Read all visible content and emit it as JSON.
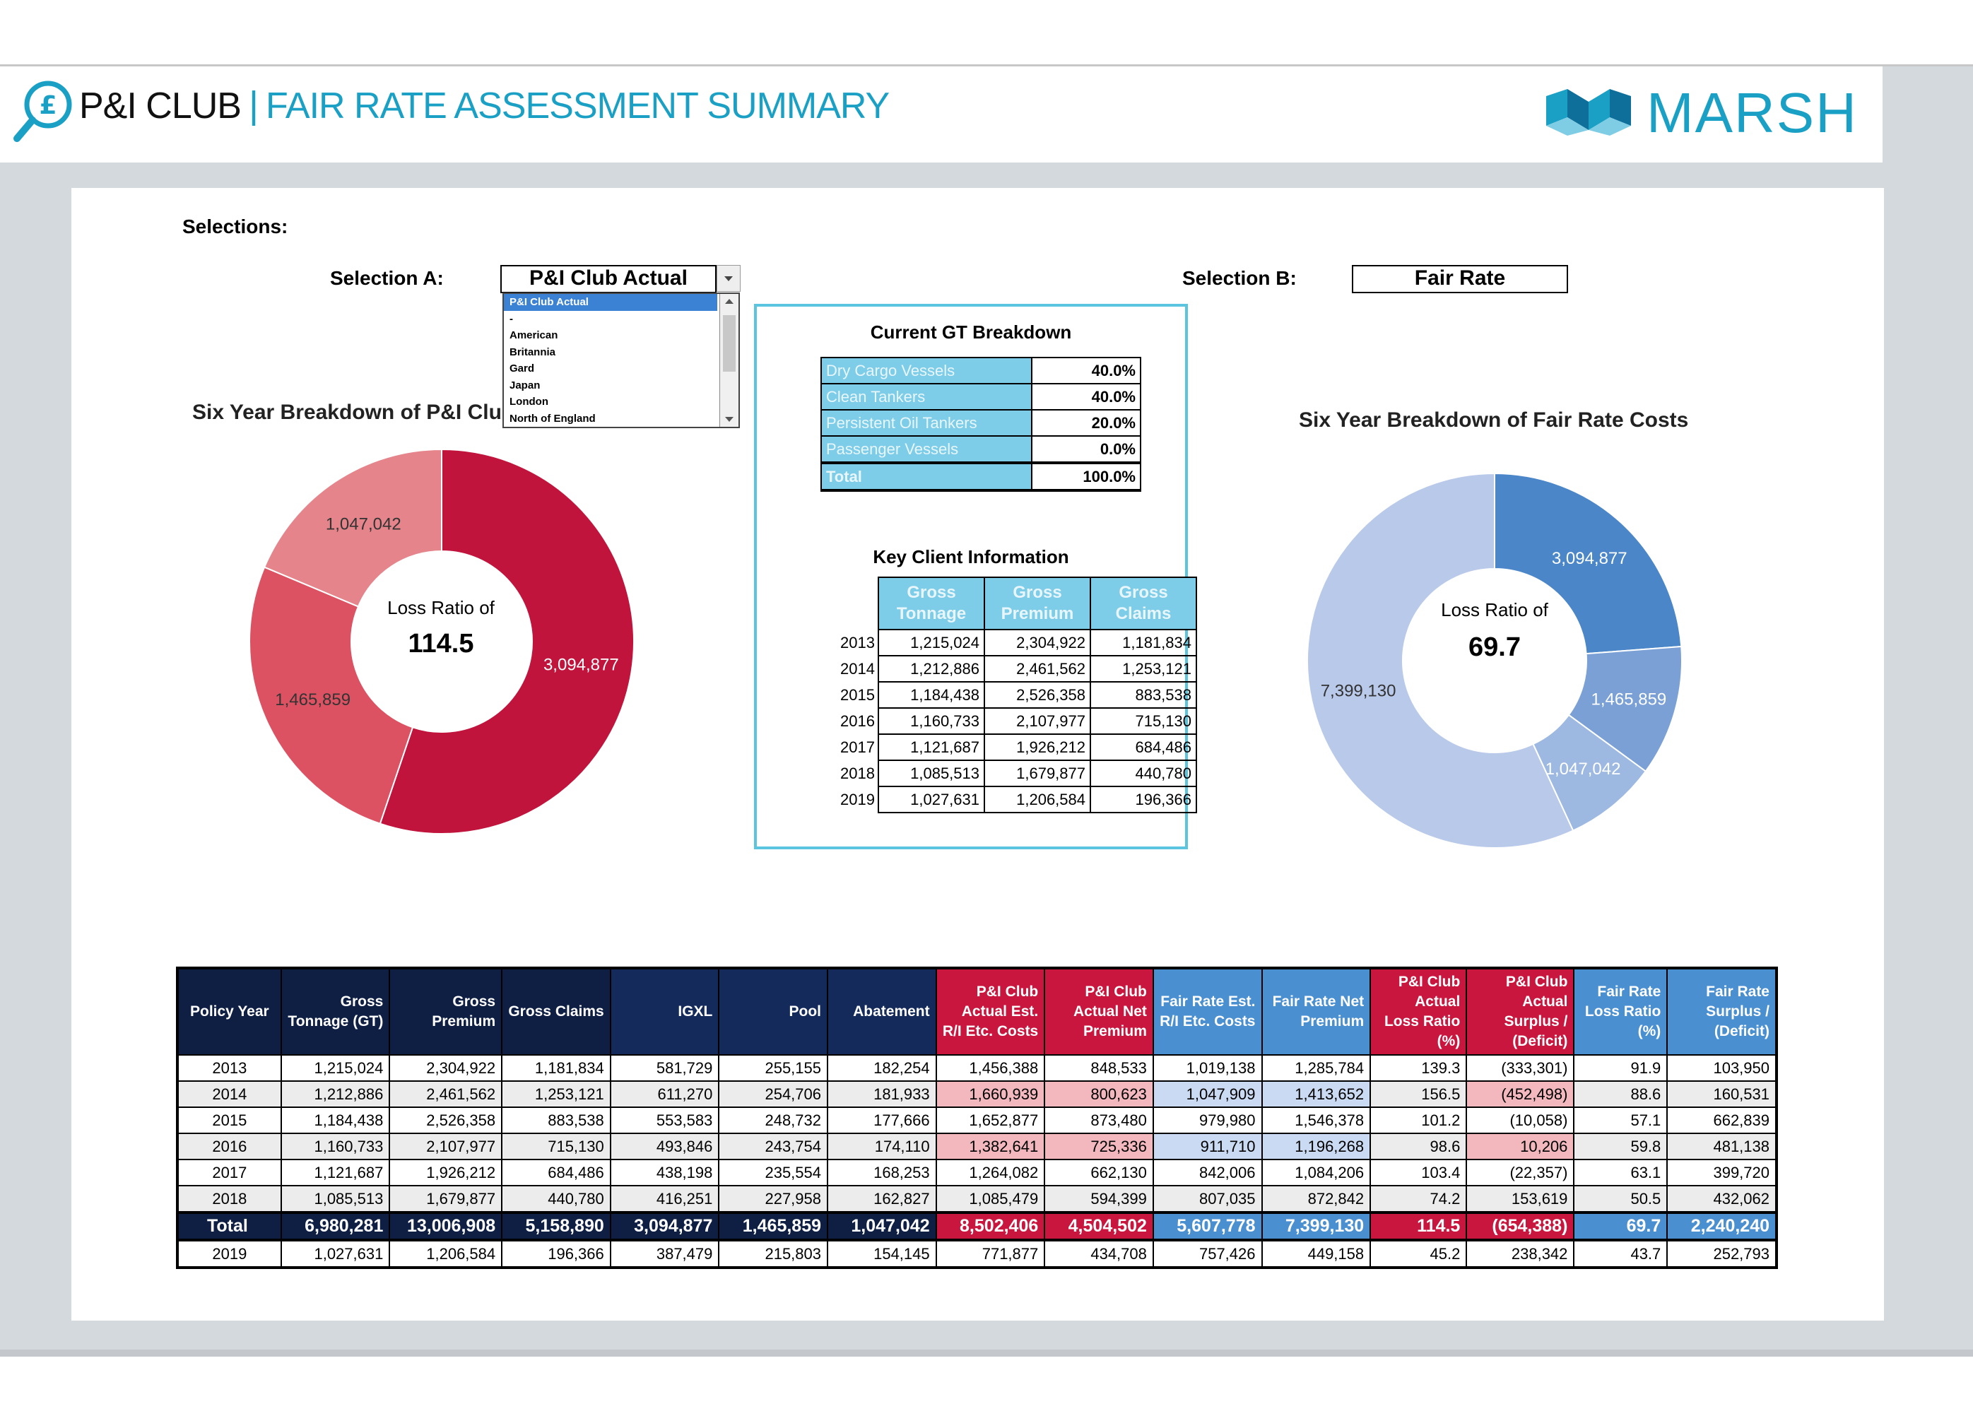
{
  "header": {
    "club": "P&I CLUB",
    "separator": "|",
    "title": "FAIR RATE ASSESSMENT SUMMARY",
    "brand": "MARSH",
    "colors": {
      "accent": "#1aa0c4",
      "red": "#c8163e",
      "blue": "#4a8fd0",
      "navy": "#0f1f44"
    }
  },
  "selections": {
    "heading": "Selections:",
    "a_label": "Selection A:",
    "a_value": "P&I Club Actual",
    "b_label": "Selection B:",
    "b_value": "Fair Rate",
    "dropdown_items": [
      "P&I Club Actual",
      "-",
      "American",
      "Britannia",
      "Gard",
      "Japan",
      "London",
      "North of England"
    ]
  },
  "left_pie": {
    "title": "Six Year Breakdown of P&I Clu",
    "center_label": "Loss Ratio of",
    "center_value": "114.5",
    "colors": [
      "#c0143c",
      "#dc5262",
      "#e5848b"
    ],
    "chart_data": {
      "type": "pie",
      "values": [
        3094877,
        1465859,
        1047042
      ],
      "labels": [
        "3,094,877",
        "1,465,859",
        "1,047,042"
      ]
    }
  },
  "right_pie": {
    "title": "Six Year Breakdown of Fair Rate Costs",
    "center_label": "Loss Ratio of",
    "center_value": "69.7",
    "colors": [
      "#4a86c8",
      "#7aa0d6",
      "#9db9e2",
      "#b9c9ea"
    ],
    "chart_data": {
      "type": "pie",
      "values": [
        3094877,
        1465859,
        1047042,
        7399130
      ],
      "labels": [
        "3,094,877",
        "1,465,859",
        "1,047,042",
        "7,399,130"
      ]
    }
  },
  "gt_breakdown": {
    "title": "Current GT Breakdown",
    "rows": [
      {
        "name": "Dry Cargo Vessels",
        "pct": "40.0%"
      },
      {
        "name": "Clean Tankers",
        "pct": "40.0%"
      },
      {
        "name": "Persistent Oil Tankers",
        "pct": "20.0%"
      },
      {
        "name": "Passenger Vessels",
        "pct": "0.0%"
      }
    ],
    "total_label": "Total",
    "total_pct": "100.0%"
  },
  "key_client": {
    "title": "Key Client Information",
    "headers": [
      "Gross Tonnage",
      "Gross Premium",
      "Gross Claims"
    ],
    "rows": [
      [
        "2013",
        "1,215,024",
        "2,304,922",
        "1,181,834"
      ],
      [
        "2014",
        "1,212,886",
        "2,461,562",
        "1,253,121"
      ],
      [
        "2015",
        "1,184,438",
        "2,526,358",
        "883,538"
      ],
      [
        "2016",
        "1,160,733",
        "2,107,977",
        "715,130"
      ],
      [
        "2017",
        "1,121,687",
        "1,926,212",
        "684,486"
      ],
      [
        "2018",
        "1,085,513",
        "1,679,877",
        "440,780"
      ],
      [
        "2019",
        "1,027,631",
        "1,206,584",
        "196,366"
      ]
    ]
  },
  "main_table": {
    "headers": [
      "Policy Year",
      "Gross Tonnage (GT)",
      "Gross Premium",
      "Gross Claims",
      "IGXL",
      "Pool",
      "Abatement",
      "P&I Club Actual Est. R/I Etc. Costs",
      "P&I Club Actual Net Premium",
      "Fair Rate Est. R/I Etc. Costs",
      "Fair Rate Net Premium",
      "P&I Club Actual Loss Ratio (%)",
      "P&I Club Actual Surplus / (Deficit)",
      "Fair Rate Loss Ratio (%)",
      "Fair Rate Surplus / (Deficit)"
    ],
    "rows": [
      [
        "2013",
        "1,215,024",
        "2,304,922",
        "1,181,834",
        "581,729",
        "255,155",
        "182,254",
        "1,456,388",
        "848,533",
        "1,019,138",
        "1,285,784",
        "139.3",
        "(333,301)",
        "91.9",
        "103,950"
      ],
      [
        "2014",
        "1,212,886",
        "2,461,562",
        "1,253,121",
        "611,270",
        "254,706",
        "181,933",
        "1,660,939",
        "800,623",
        "1,047,909",
        "1,413,652",
        "156.5",
        "(452,498)",
        "88.6",
        "160,531"
      ],
      [
        "2015",
        "1,184,438",
        "2,526,358",
        "883,538",
        "553,583",
        "248,732",
        "177,666",
        "1,652,877",
        "873,480",
        "979,980",
        "1,546,378",
        "101.2",
        "(10,058)",
        "57.1",
        "662,839"
      ],
      [
        "2016",
        "1,160,733",
        "2,107,977",
        "715,130",
        "493,846",
        "243,754",
        "174,110",
        "1,382,641",
        "725,336",
        "911,710",
        "1,196,268",
        "98.6",
        "10,206",
        "59.8",
        "481,138"
      ],
      [
        "2017",
        "1,121,687",
        "1,926,212",
        "684,486",
        "438,198",
        "235,554",
        "168,253",
        "1,264,082",
        "662,130",
        "842,006",
        "1,084,206",
        "103.4",
        "(22,357)",
        "63.1",
        "399,720"
      ],
      [
        "2018",
        "1,085,513",
        "1,679,877",
        "440,780",
        "416,251",
        "227,958",
        "162,827",
        "1,085,479",
        "594,399",
        "807,035",
        "872,842",
        "74.2",
        "153,619",
        "50.5",
        "432,062"
      ]
    ],
    "total": [
      "Total",
      "6,980,281",
      "13,006,908",
      "5,158,890",
      "3,094,877",
      "1,465,859",
      "1,047,042",
      "8,502,406",
      "4,504,502",
      "5,607,778",
      "7,399,130",
      "114.5",
      "(654,388)",
      "69.7",
      "2,240,240"
    ],
    "next": [
      "2019",
      "1,027,631",
      "1,206,584",
      "196,366",
      "387,479",
      "215,803",
      "154,145",
      "771,877",
      "434,708",
      "757,426",
      "449,158",
      "45.2",
      "238,342",
      "43.7",
      "252,793"
    ]
  }
}
